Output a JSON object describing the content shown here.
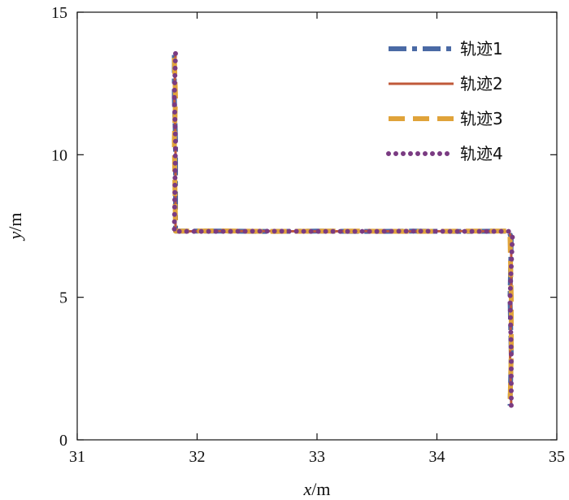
{
  "chart_data": {
    "type": "line",
    "xlabel": {
      "var": "x",
      "unit": "/m"
    },
    "ylabel": {
      "var": "y",
      "unit": "/m"
    },
    "xlim": [
      31,
      35
    ],
    "ylim": [
      0,
      15
    ],
    "xticks": [
      "31",
      "32",
      "33",
      "34",
      "35"
    ],
    "yticks": [
      "0",
      "5",
      "10",
      "15"
    ],
    "legend_position": "top-right",
    "series": [
      {
        "name": "轨迹1",
        "color": "#4a6aa5",
        "style": "dashdot",
        "x": [
          31.81,
          31.81,
          31.82,
          31.82,
          32.2,
          32.6,
          33.0,
          33.4,
          33.8,
          34.2,
          34.6,
          34.62,
          34.61,
          34.62,
          34.61
        ],
        "y": [
          13.5,
          12.0,
          10.5,
          7.32,
          7.32,
          7.31,
          7.32,
          7.31,
          7.32,
          7.31,
          7.32,
          7.1,
          5.0,
          3.0,
          1.2
        ]
      },
      {
        "name": "轨迹2",
        "color": "#c0593a",
        "style": "solid",
        "x": [
          31.82,
          31.81,
          31.82,
          31.82,
          32.2,
          32.6,
          33.0,
          33.4,
          33.8,
          34.2,
          34.6,
          34.62,
          34.62,
          34.61,
          34.62
        ],
        "y": [
          13.5,
          12.0,
          10.5,
          7.31,
          7.32,
          7.32,
          7.31,
          7.32,
          7.31,
          7.32,
          7.31,
          7.1,
          5.0,
          3.0,
          1.2
        ]
      },
      {
        "name": "轨迹3",
        "color": "#e0a33a",
        "style": "dashed",
        "x": [
          31.81,
          31.82,
          31.81,
          31.82,
          32.2,
          32.6,
          33.0,
          33.4,
          33.8,
          34.2,
          34.6,
          34.61,
          34.62,
          34.62,
          34.61
        ],
        "y": [
          13.4,
          12.0,
          10.5,
          7.32,
          7.33,
          7.31,
          7.32,
          7.32,
          7.31,
          7.32,
          7.32,
          7.1,
          5.0,
          3.0,
          1.25
        ]
      },
      {
        "name": "轨迹4",
        "color": "#7a3b82",
        "style": "dotted",
        "x": [
          31.82,
          31.81,
          31.82,
          31.81,
          32.2,
          32.6,
          33.0,
          33.4,
          33.8,
          34.2,
          34.6,
          34.63,
          34.61,
          34.62,
          34.62
        ],
        "y": [
          13.55,
          12.0,
          10.5,
          7.31,
          7.31,
          7.32,
          7.31,
          7.31,
          7.32,
          7.31,
          7.31,
          7.15,
          5.0,
          3.0,
          1.15
        ]
      }
    ]
  }
}
